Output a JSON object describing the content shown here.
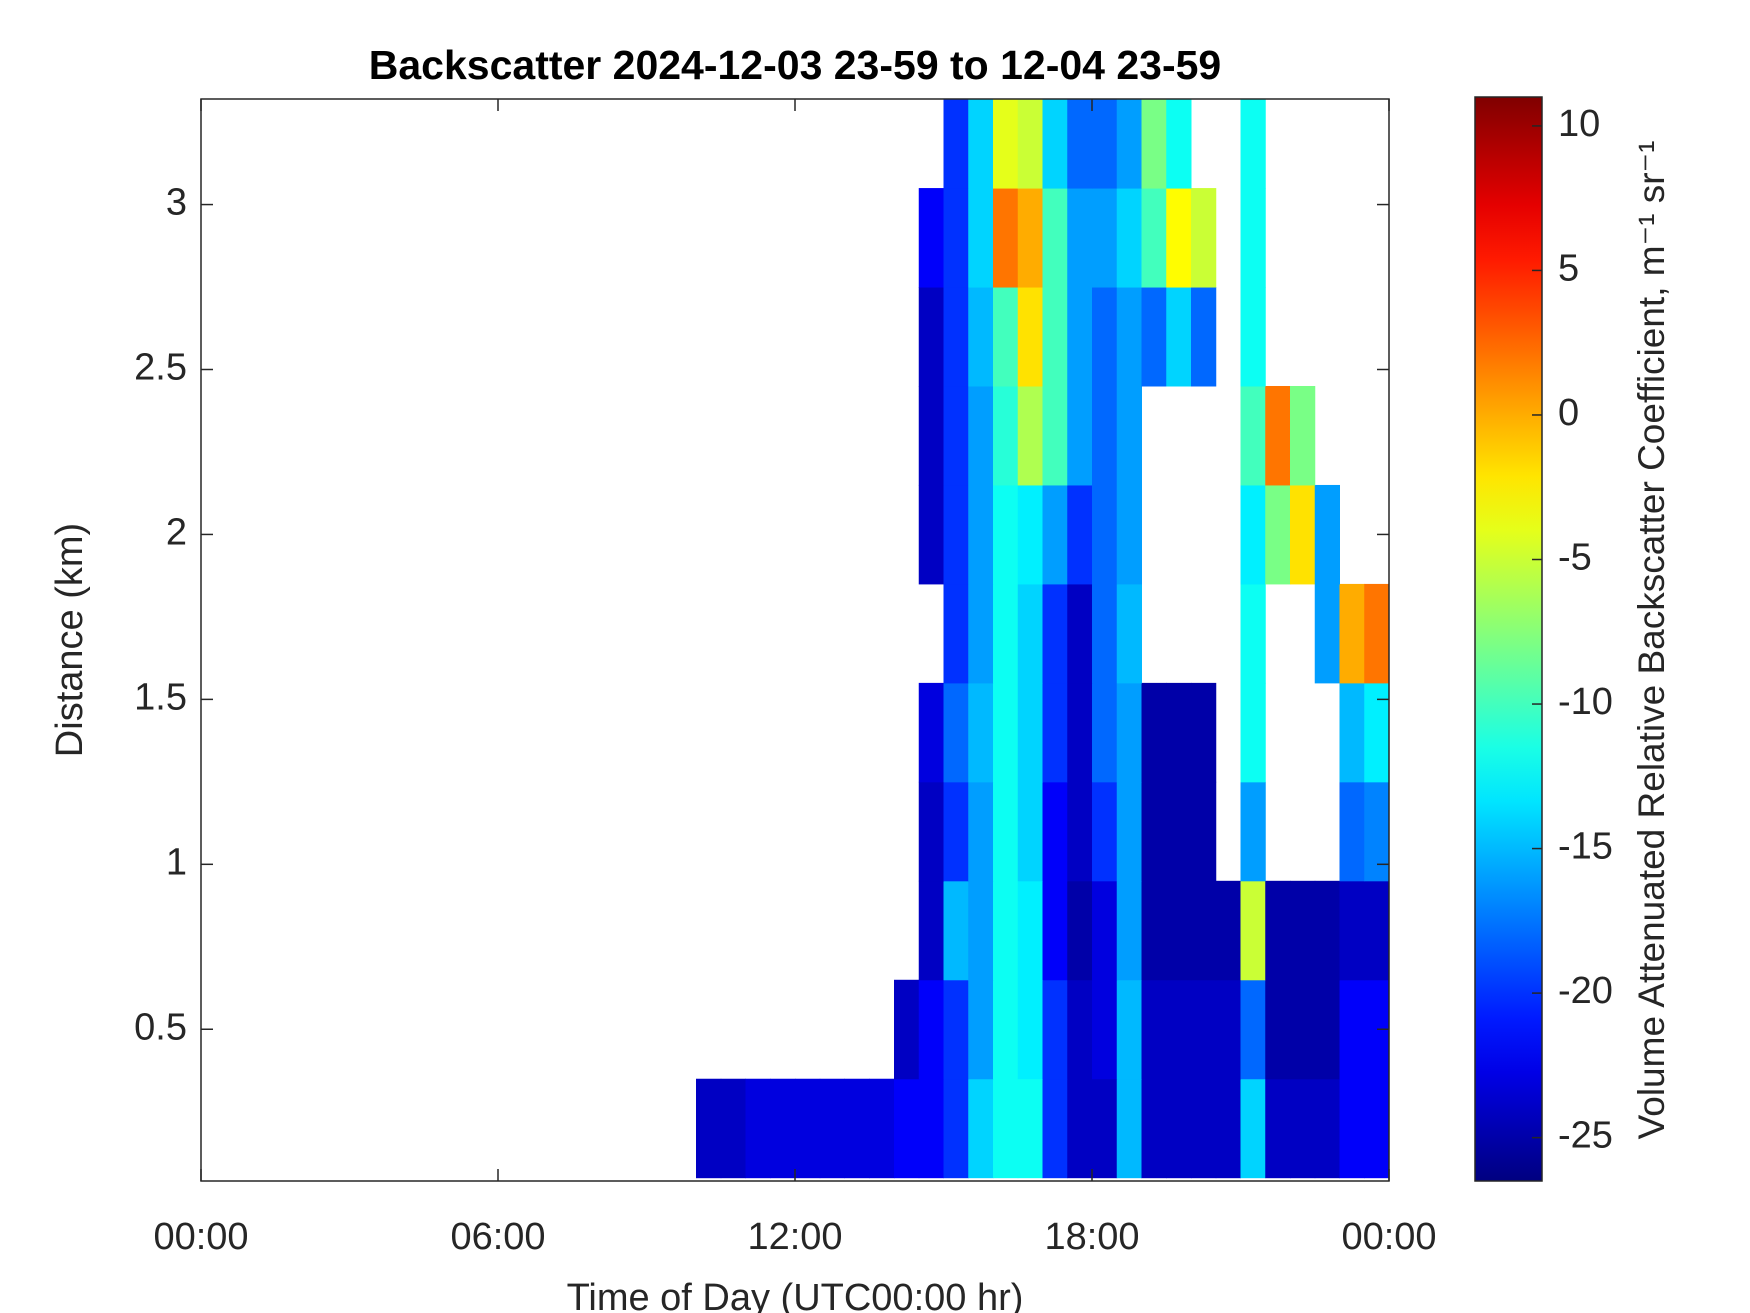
{
  "chart_data": {
    "type": "heatmap",
    "title": "Backscatter 2024-12-03 23-59 to 12-04 23-59",
    "x_label": "Time of Day (UTC00:00 hr)",
    "y_label": "Distance (km)",
    "colorbar_label": "Volume Attenuated Relative Backscatter Coefficient, m⁻¹ sr⁻¹",
    "colormap": "jet",
    "xlim": [
      0,
      24
    ],
    "xticks": [
      {
        "value": 0,
        "label": "00:00"
      },
      {
        "value": 6,
        "label": "06:00"
      },
      {
        "value": 12,
        "label": "12:00"
      },
      {
        "value": 18,
        "label": "18:00"
      },
      {
        "value": 24,
        "label": "00:00"
      }
    ],
    "ylim": [
      0.04,
      3.32
    ],
    "yticks": [
      0.5,
      1,
      1.5,
      2,
      2.5,
      3
    ],
    "clim": [
      -26.5,
      11
    ],
    "cticks": [
      -25,
      -20,
      -15,
      -10,
      -5,
      0,
      5,
      10
    ],
    "x": [
      0.25,
      0.75,
      1.25,
      1.75,
      2.25,
      2.75,
      3.25,
      3.75,
      4.25,
      4.75,
      5.25,
      5.75,
      6.25,
      6.75,
      7.25,
      7.75,
      8.25,
      8.75,
      9.25,
      9.75,
      10.25,
      10.75,
      11.25,
      11.75,
      12.25,
      12.75,
      13.25,
      13.75,
      14.25,
      14.75,
      15.25,
      15.75,
      16.25,
      16.75,
      17.25,
      17.75,
      18.25,
      18.75,
      19.25,
      19.75,
      20.25,
      20.75,
      21.25,
      21.75,
      22.25,
      22.75,
      23.25,
      23.75
    ],
    "y": [
      0.2,
      0.5,
      0.8,
      1.1,
      1.4,
      1.7,
      2.0,
      2.3,
      2.6,
      2.9,
      3.2
    ],
    "z": [
      [
        null,
        null,
        null,
        null,
        null,
        null,
        null,
        null,
        null,
        null,
        null,
        null,
        null,
        null,
        null,
        null,
        null,
        null,
        null,
        null,
        -24,
        -24,
        -23,
        -23,
        -23,
        -23,
        -23,
        -23,
        -22,
        -22,
        -20,
        -14,
        -12,
        -12,
        -20,
        -24,
        -24,
        -15,
        -24,
        -24,
        -24,
        -24,
        -14,
        -24,
        -24,
        -24,
        -22,
        -22
      ],
      [
        null,
        null,
        null,
        null,
        null,
        null,
        null,
        null,
        null,
        null,
        null,
        null,
        null,
        null,
        null,
        null,
        null,
        null,
        null,
        null,
        null,
        null,
        null,
        null,
        null,
        null,
        null,
        null,
        -24,
        -22,
        -20,
        -16,
        -12,
        -13,
        -20,
        -24,
        -23,
        -15,
        -24,
        -24,
        -24,
        -24,
        -18,
        -25,
        -25,
        -25,
        -22,
        -22
      ],
      [
        null,
        null,
        null,
        null,
        null,
        null,
        null,
        null,
        null,
        null,
        null,
        null,
        null,
        null,
        null,
        null,
        null,
        null,
        null,
        null,
        null,
        null,
        null,
        null,
        null,
        null,
        null,
        null,
        null,
        -24,
        -15,
        -16,
        -12,
        -13,
        -22,
        -25,
        -23,
        -16,
        -25,
        -25,
        -25,
        -25,
        -5,
        -25,
        -25,
        -25,
        -24,
        -24
      ],
      [
        null,
        null,
        null,
        null,
        null,
        null,
        null,
        null,
        null,
        null,
        null,
        null,
        null,
        null,
        null,
        null,
        null,
        null,
        null,
        null,
        null,
        null,
        null,
        null,
        null,
        null,
        null,
        null,
        null,
        -24,
        -20,
        -16,
        -12,
        -14,
        -22,
        -24,
        -20,
        -16,
        -25,
        -25,
        -25,
        null,
        -16,
        null,
        null,
        null,
        -18,
        -17
      ],
      [
        null,
        null,
        null,
        null,
        null,
        null,
        null,
        null,
        null,
        null,
        null,
        null,
        null,
        null,
        null,
        null,
        null,
        null,
        null,
        null,
        null,
        null,
        null,
        null,
        null,
        null,
        null,
        null,
        null,
        -23,
        -18,
        -15,
        -12,
        -14,
        -20,
        -24,
        -18,
        -16,
        -25,
        -25,
        -25,
        null,
        -12,
        null,
        null,
        null,
        -15,
        -13
      ],
      [
        null,
        null,
        null,
        null,
        null,
        null,
        null,
        null,
        null,
        null,
        null,
        null,
        null,
        null,
        null,
        null,
        null,
        null,
        null,
        null,
        null,
        null,
        null,
        null,
        null,
        null,
        null,
        null,
        null,
        null,
        -20,
        -16,
        -12,
        -14,
        -20,
        -24,
        -18,
        -15,
        null,
        null,
        null,
        null,
        -12,
        null,
        null,
        -16,
        0,
        2
      ],
      [
        null,
        null,
        null,
        null,
        null,
        null,
        null,
        null,
        null,
        null,
        null,
        null,
        null,
        null,
        null,
        null,
        null,
        null,
        null,
        null,
        null,
        null,
        null,
        null,
        null,
        null,
        null,
        null,
        null,
        -24,
        -20,
        -16,
        -12,
        -13,
        -16,
        -20,
        -18,
        -16,
        null,
        null,
        null,
        null,
        -13,
        -8,
        -2,
        -16,
        null,
        null
      ],
      [
        null,
        null,
        null,
        null,
        null,
        null,
        null,
        null,
        null,
        null,
        null,
        null,
        null,
        null,
        null,
        null,
        null,
        null,
        null,
        null,
        null,
        null,
        null,
        null,
        null,
        null,
        null,
        null,
        null,
        -24,
        -20,
        -16,
        -11,
        -6,
        -10,
        -16,
        -18,
        -16,
        null,
        null,
        null,
        null,
        -10,
        2,
        -8,
        null,
        null,
        null
      ],
      [
        null,
        null,
        null,
        null,
        null,
        null,
        null,
        null,
        null,
        null,
        null,
        null,
        null,
        null,
        null,
        null,
        null,
        null,
        null,
        null,
        null,
        null,
        null,
        null,
        null,
        null,
        null,
        null,
        null,
        -24,
        -20,
        -15,
        -10,
        -2,
        -10,
        -16,
        -18,
        -16,
        -18,
        -14,
        -18,
        null,
        -12,
        null,
        null,
        null,
        null,
        null
      ],
      [
        null,
        null,
        null,
        null,
        null,
        null,
        null,
        null,
        null,
        null,
        null,
        null,
        null,
        null,
        null,
        null,
        null,
        null,
        null,
        null,
        null,
        null,
        null,
        null,
        null,
        null,
        null,
        null,
        null,
        -22,
        -20,
        -14,
        2,
        0,
        -10,
        -16,
        -16,
        -14,
        -10,
        -3,
        -5,
        null,
        -12,
        null,
        null,
        null,
        null,
        null
      ],
      [
        null,
        null,
        null,
        null,
        null,
        null,
        null,
        null,
        null,
        null,
        null,
        null,
        null,
        null,
        null,
        null,
        null,
        null,
        null,
        null,
        null,
        null,
        null,
        null,
        null,
        null,
        null,
        null,
        null,
        null,
        -20,
        -14,
        -4,
        -5,
        -14,
        -18,
        -18,
        -16,
        -8,
        -12,
        null,
        null,
        -12,
        null,
        null,
        null,
        null,
        null
      ]
    ]
  }
}
